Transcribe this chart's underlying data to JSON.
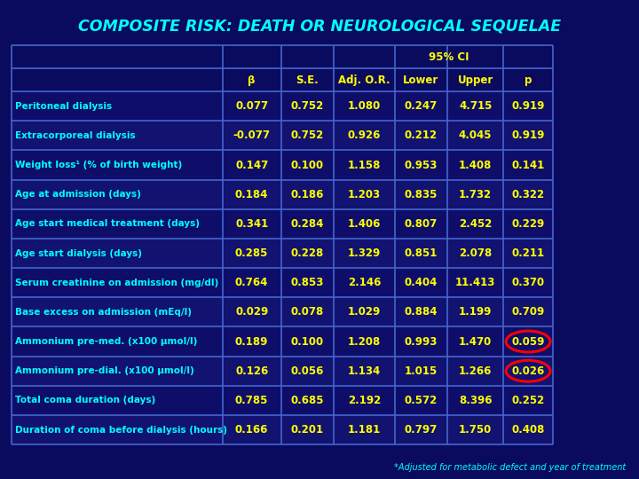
{
  "title": "COMPOSITE RISK: DEATH OR NEUROLOGICAL SEQUELAE",
  "bg_color": "#0a0a5e",
  "header_text_color": "#ffff00",
  "cell_text_color": "#ffff00",
  "row_label_color": "#00ffff",
  "title_color": "#00ffff",
  "footnote_color": "#00ffff",
  "footnote": "*Adjusted for metabolic defect and year of treatment",
  "col_headers": [
    "β",
    "S.E.",
    "Adj. O.R.",
    "Lower",
    "Upper",
    "p"
  ],
  "ci_header": "95% CI",
  "rows": [
    [
      "Peritoneal dialysis",
      "0.077",
      "0.752",
      "1.080",
      "0.247",
      "4.715",
      "0.919"
    ],
    [
      "Extracorporeal dialysis",
      "-0.077",
      "0.752",
      "0.926",
      "0.212",
      "4.045",
      "0.919"
    ],
    [
      "Weight loss¹ (% of birth weight)",
      "0.147",
      "0.100",
      "1.158",
      "0.953",
      "1.408",
      "0.141"
    ],
    [
      "Age at admission (days)",
      "0.184",
      "0.186",
      "1.203",
      "0.835",
      "1.732",
      "0.322"
    ],
    [
      "Age start medical treatment (days)",
      "0.341",
      "0.284",
      "1.406",
      "0.807",
      "2.452",
      "0.229"
    ],
    [
      "Age start dialysis (days)",
      "0.285",
      "0.228",
      "1.329",
      "0.851",
      "2.078",
      "0.211"
    ],
    [
      "Serum creatinine on admission (mg/dl)",
      "0.764",
      "0.853",
      "2.146",
      "0.404",
      "11.413",
      "0.370"
    ],
    [
      "Base excess on admission (mEq/l)",
      "0.029",
      "0.078",
      "1.029",
      "0.884",
      "1.199",
      "0.709"
    ],
    [
      "Ammonium pre-med. (x100 μmol/l)",
      "0.189",
      "0.100",
      "1.208",
      "0.993",
      "1.470",
      "0.059"
    ],
    [
      "Ammonium pre-dial. (x100 μmol/l)",
      "0.126",
      "0.056",
      "1.134",
      "1.015",
      "1.266",
      "0.026"
    ],
    [
      "Total coma duration (days)",
      "0.785",
      "0.685",
      "2.192",
      "0.572",
      "8.396",
      "0.252"
    ],
    [
      "Duration of coma before dialysis (hours)",
      "0.166",
      "0.201",
      "1.181",
      "0.797",
      "1.750",
      "0.408"
    ]
  ],
  "circled_cells": [
    [
      8,
      6
    ],
    [
      9,
      6
    ]
  ],
  "circle_color": "#ff0000",
  "grid_color": "#4466cc",
  "row_colors": [
    "#0d0d6b",
    "#0a0a60"
  ],
  "header_bg": "#0a0a5e"
}
